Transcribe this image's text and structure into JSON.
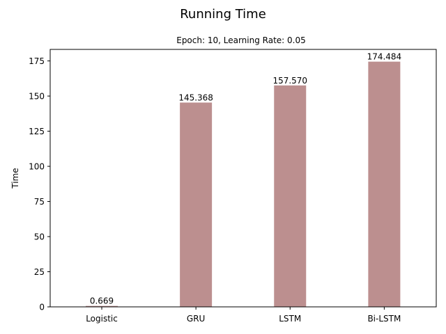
{
  "chart_data": {
    "type": "bar",
    "title": "Running Time",
    "subtitle": "Epoch: 10, Learning Rate: 0.05",
    "xlabel": "",
    "ylabel": "Time",
    "categories": [
      "Logistic",
      "GRU",
      "LSTM",
      "Bi-LSTM"
    ],
    "values": [
      0.669,
      145.368,
      157.57,
      174.484
    ],
    "value_labels": [
      "0.669",
      "145.368",
      "157.570",
      "174.484"
    ],
    "ylim": [
      0,
      183.2
    ],
    "yticks": [
      0,
      25,
      50,
      75,
      100,
      125,
      150,
      175
    ],
    "grid": false,
    "bar_color": "#bc8f8f"
  }
}
